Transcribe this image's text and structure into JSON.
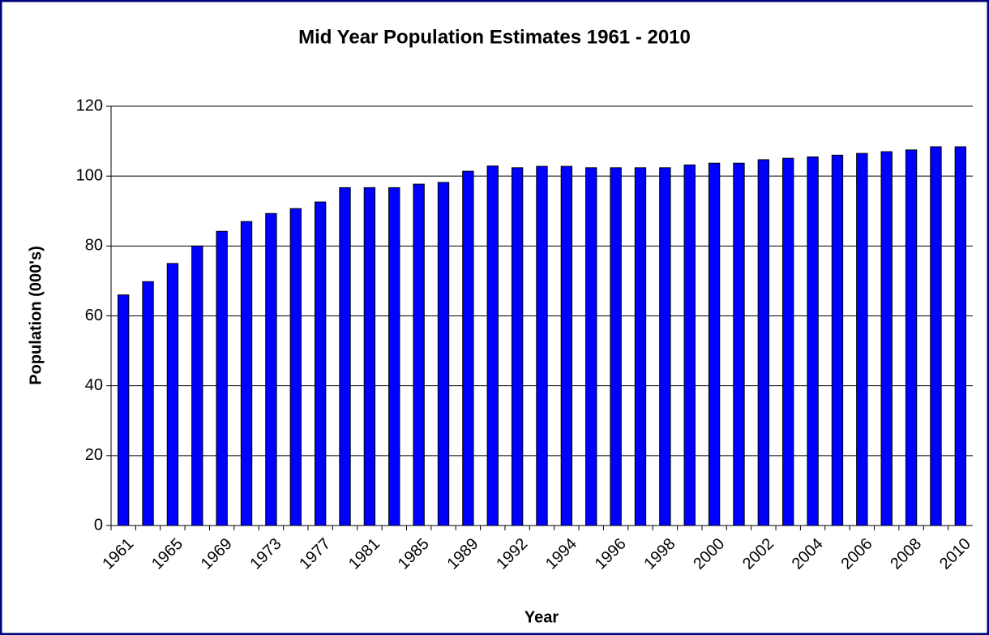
{
  "chart_data": {
    "type": "bar",
    "title": "Mid Year Population Estimates 1961 - 2010",
    "x_label": "Year",
    "y_label": "Population (000's)",
    "categories": [
      "1961",
      null,
      "1965",
      null,
      "1969",
      null,
      "1973",
      null,
      "1977",
      null,
      "1981",
      null,
      "1985",
      null,
      "1989",
      null,
      "1992",
      null,
      "1994",
      null,
      "1996",
      null,
      "1998",
      null,
      "2000",
      null,
      "2002",
      null,
      "2004",
      null,
      "2006",
      null,
      "2008",
      null,
      "2010"
    ],
    "values": [
      66,
      69.8,
      75,
      80,
      84.2,
      87,
      89.3,
      90.7,
      92.6,
      96.7,
      96.7,
      96.7,
      97.7,
      98.2,
      101.4,
      102.9,
      102.4,
      102.8,
      102.8,
      102.4,
      102.4,
      102.4,
      102.4,
      103.2,
      103.7,
      103.7,
      104.7,
      105.1,
      105.5,
      106,
      106.5,
      107,
      107.5,
      108.4,
      108.4
    ],
    "color": "#0000ff",
    "ylim": [
      0,
      120
    ],
    "yticks": [
      0,
      20,
      40,
      60,
      80,
      100,
      120
    ],
    "grid": true
  }
}
